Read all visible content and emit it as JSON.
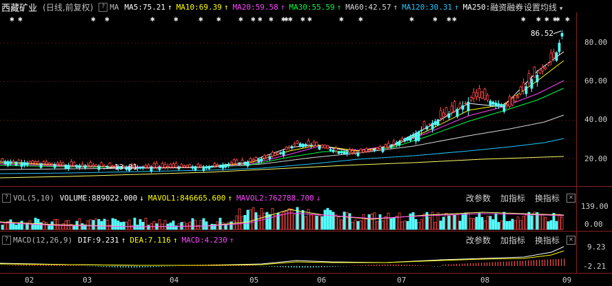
{
  "header": {
    "stock_name": "西藏矿业",
    "period_label": "(日线,前复权)",
    "help_glyph": "?",
    "ma_label": "MA",
    "ma_items": [
      {
        "text": "MA5:75.21",
        "color": "#ffffff",
        "arrow": "↑"
      },
      {
        "text": "MA10:69.39",
        "color": "#ffff00",
        "arrow": "↑"
      },
      {
        "text": "MA20:59.58",
        "color": "#ff44ff",
        "arrow": "↑"
      },
      {
        "text": "MA30:55.59",
        "color": "#00ff44",
        "arrow": "↑"
      },
      {
        "text": "MA60:42.57",
        "color": "#d8d8d8",
        "arrow": "↑"
      },
      {
        "text": "MA120:30.31",
        "color": "#22c8ff",
        "arrow": "↑"
      },
      {
        "text": "MA250:",
        "color": "#ffffff",
        "arrow": ""
      }
    ],
    "margin_label": "融资融券",
    "settings_label": "设置均线",
    "settings_arrow": "▾"
  },
  "price_axis": [
    "80.00",
    "60.00",
    "40.00",
    "20.00"
  ],
  "annotations": {
    "high": "86.52",
    "low": "13.01"
  },
  "vol_panel": {
    "label": "VOL(5,10)",
    "volume": "VOLUME:889022.000",
    "volume_arrow": "↓",
    "mavol1": "MAVOL1:846665.600",
    "mavol1_arrow": "↑",
    "mavol2": "MAVOL2:762788.700",
    "mavol2_arrow": "↓",
    "axis": [
      "139.00",
      "0.00"
    ],
    "buttons": [
      "改参数",
      "加指标",
      "换指标"
    ],
    "close": "✕"
  },
  "macd_panel": {
    "label": "MACD(12,26,9)",
    "dif": "DIF:9.231",
    "dif_arrow": "↑",
    "dea": "DEA:7.116",
    "dea_arrow": "↑",
    "macd": "MACD:4.230",
    "macd_arrow": "↑",
    "axis": [
      "9.23",
      "-2.21"
    ],
    "buttons": [
      "改参数",
      "加指标",
      "换指标"
    ],
    "close": "✕"
  },
  "x_axis": [
    "02",
    "03",
    "04",
    "05",
    "06",
    "07",
    "08",
    "09"
  ],
  "star_glyph": "✱",
  "colors": {
    "up": "#ff4a4a",
    "down": "#54ffff",
    "grid": "#6a1d1d",
    "bg": "#000000"
  }
}
